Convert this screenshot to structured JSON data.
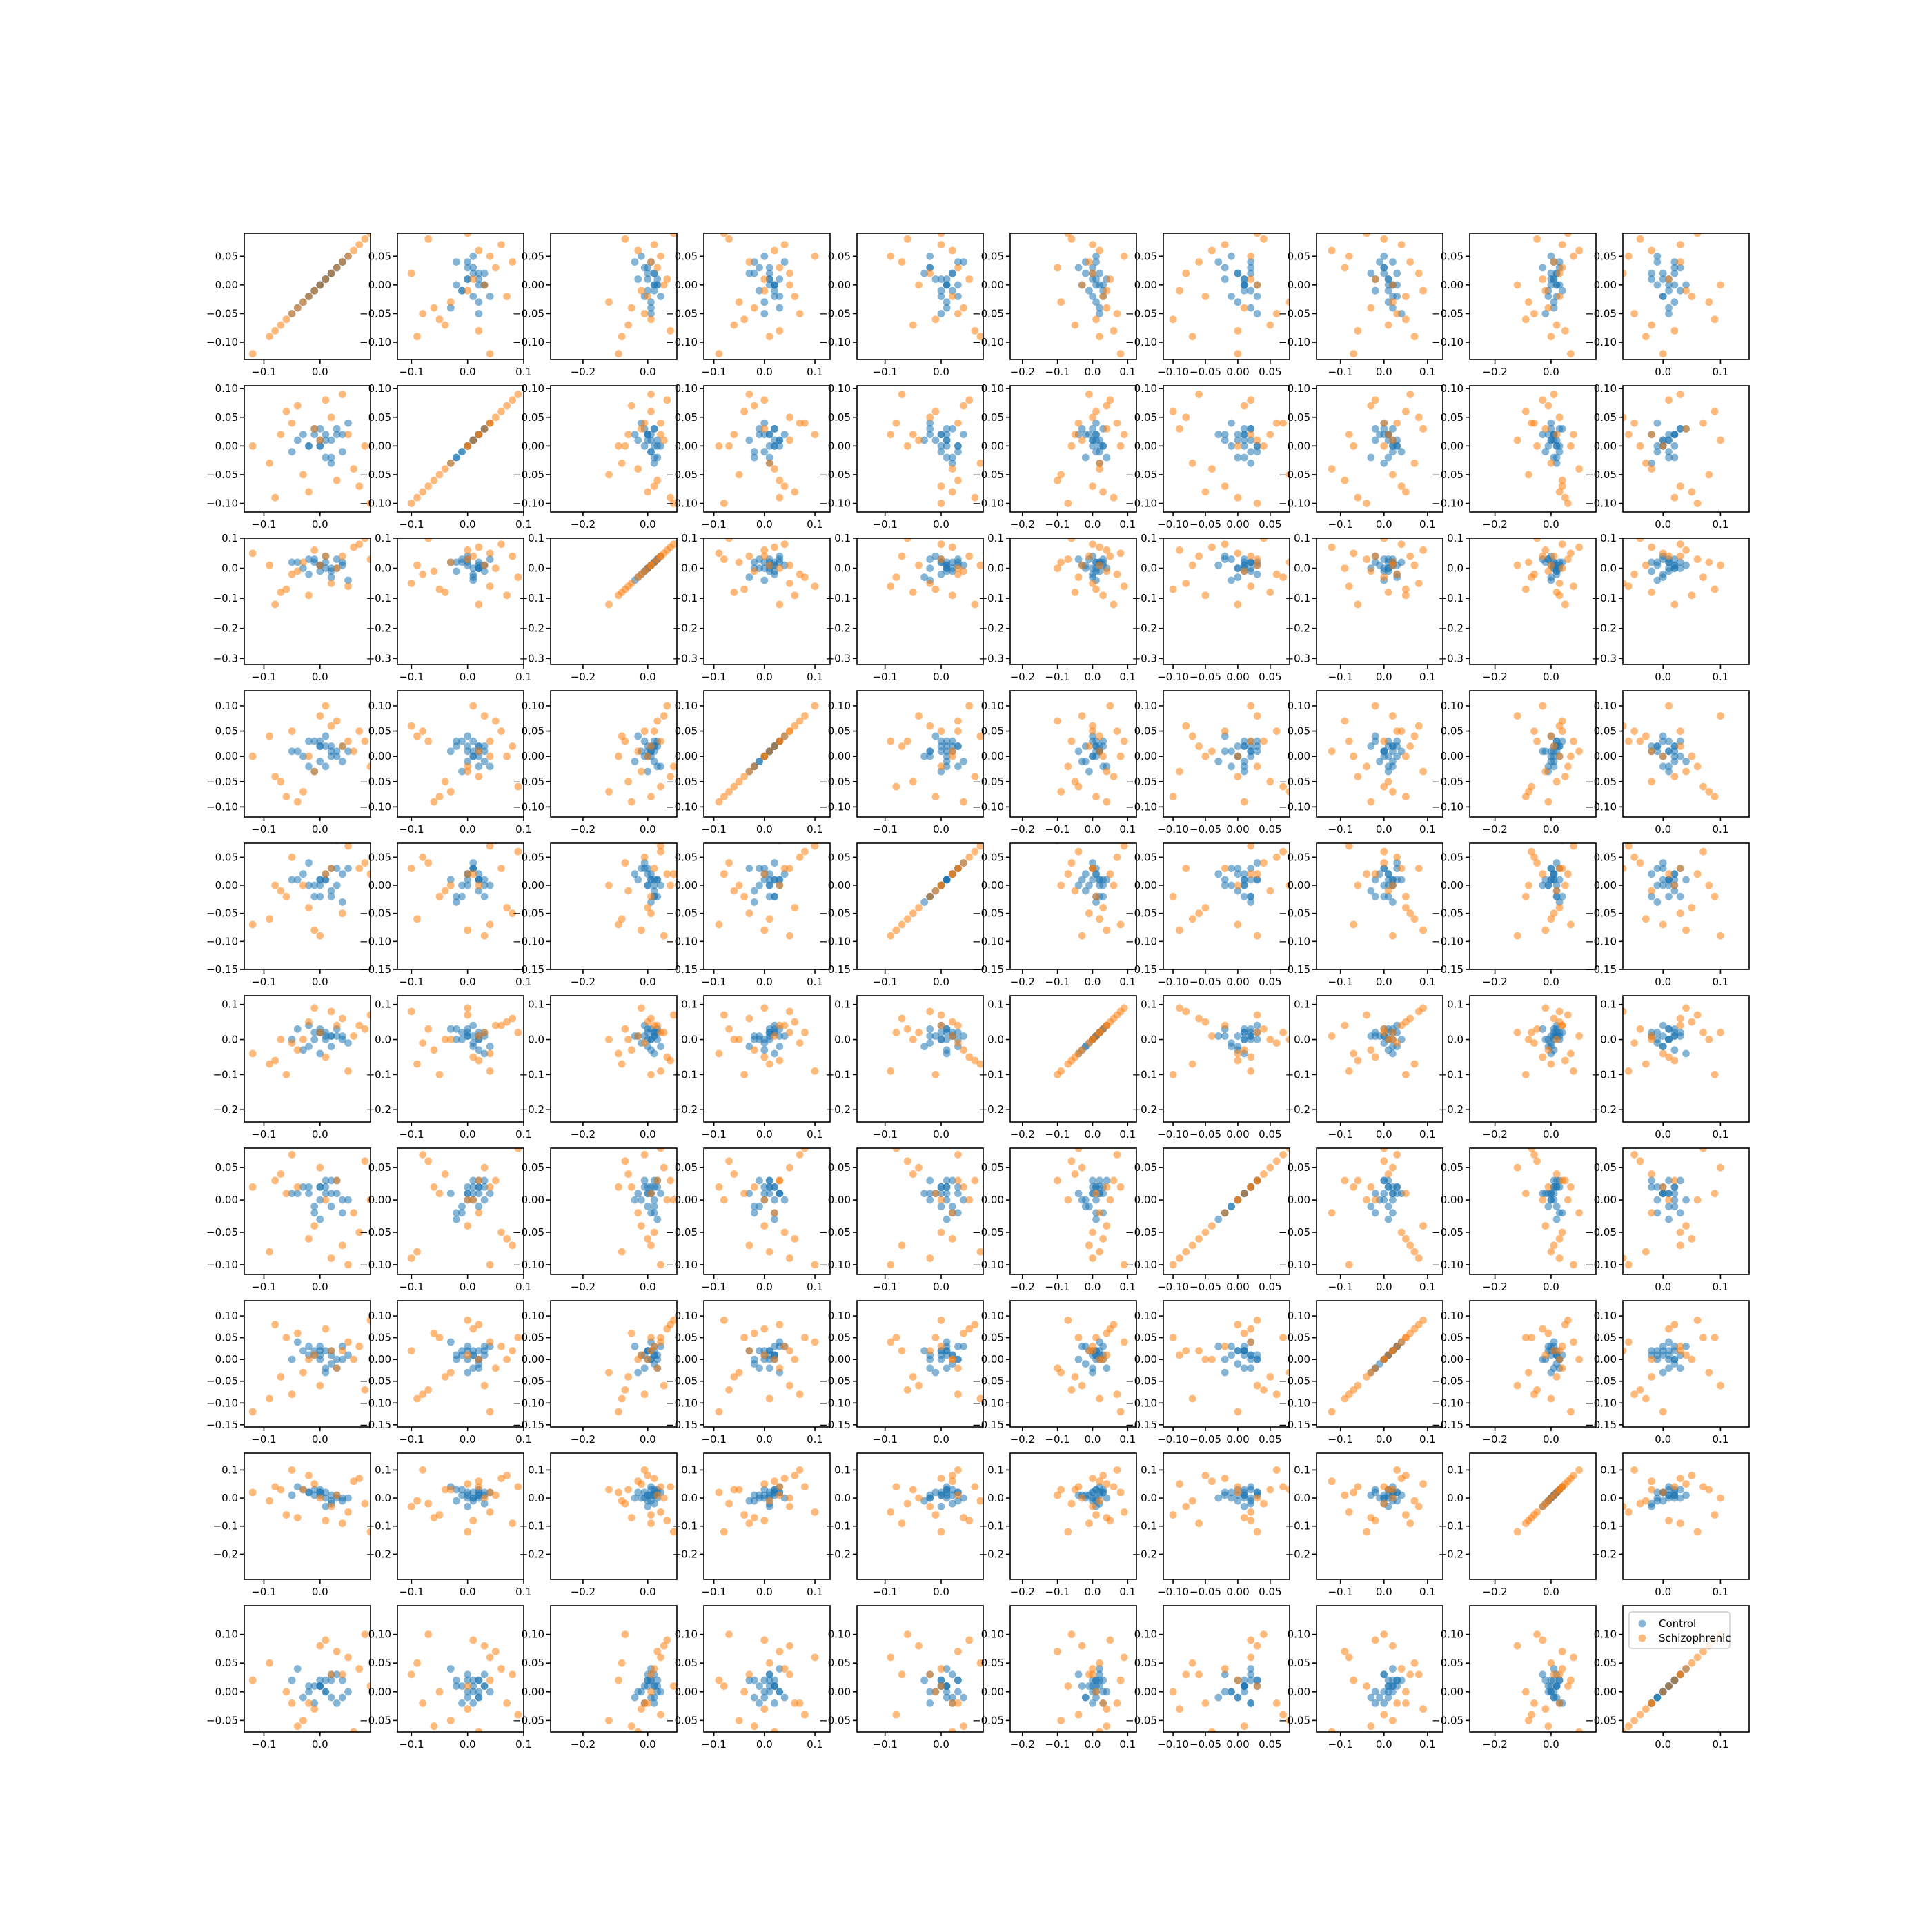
{
  "chart_data": {
    "type": "scatter",
    "layout": "pair-plot grid, 10 x 10 panels",
    "series": [
      {
        "name": "Control",
        "color": "#1f77b4",
        "opacity": 0.55
      },
      {
        "name": "Schizophrenic",
        "color": "#ff7f0e",
        "opacity": 0.55
      }
    ],
    "legend": {
      "location": "upper-left",
      "panel": [
        9,
        9
      ],
      "labels": [
        "Control",
        "Schizophrenic"
      ]
    },
    "variables": [
      {
        "ylim": [
          -0.13,
          0.09
        ],
        "yticks": [
          0.05,
          0.0,
          -0.05,
          -0.1
        ],
        "ytick_labels": [
          "0.05",
          "0.00",
          "−0.05",
          "−0.10"
        ]
      },
      {
        "ylim": [
          -0.115,
          0.105
        ],
        "yticks": [
          0.1,
          0.05,
          0.0,
          -0.05,
          -0.1
        ],
        "ytick_labels": [
          "0.10",
          "0.05",
          "0.00",
          "−0.05",
          "−0.10"
        ]
      },
      {
        "ylim": [
          -0.32,
          0.1
        ],
        "yticks": [
          0.1,
          0.0,
          -0.1,
          -0.2,
          -0.3
        ],
        "ytick_labels": [
          "0.1",
          "0.0",
          "−0.1",
          "−0.2",
          "−0.3"
        ]
      },
      {
        "ylim": [
          -0.12,
          0.13
        ],
        "yticks": [
          0.1,
          0.05,
          0.0,
          -0.05,
          -0.1
        ],
        "ytick_labels": [
          "0.10",
          "0.05",
          "0.00",
          "−0.05",
          "−0.10"
        ]
      },
      {
        "ylim": [
          -0.15,
          0.075
        ],
        "yticks": [
          0.05,
          0.0,
          -0.05,
          -0.1,
          -0.15
        ],
        "ytick_labels": [
          "0.05",
          "0.00",
          "−0.05",
          "−0.10",
          "−0.15"
        ]
      },
      {
        "ylim": [
          -0.235,
          0.125
        ],
        "yticks": [
          0.1,
          0.0,
          -0.1,
          -0.2
        ],
        "ytick_labels": [
          "0.1",
          "0.0",
          "−0.1",
          "−0.2"
        ]
      },
      {
        "ylim": [
          -0.115,
          0.08
        ],
        "yticks": [
          0.05,
          0.0,
          -0.05,
          -0.1
        ],
        "ytick_labels": [
          "0.05",
          "0.00",
          "−0.05",
          "−0.10"
        ]
      },
      {
        "ylim": [
          -0.155,
          0.135
        ],
        "yticks": [
          0.1,
          0.05,
          0.0,
          -0.05,
          -0.1,
          -0.15
        ],
        "ytick_labels": [
          "0.10",
          "0.05",
          "0.00",
          "−0.05",
          "−0.10",
          "−0.15"
        ]
      },
      {
        "ylim": [
          -0.29,
          0.16
        ],
        "yticks": [
          0.1,
          0.0,
          -0.1,
          -0.2
        ],
        "ytick_labels": [
          "0.1",
          "0.0",
          "−0.1",
          "−0.2"
        ]
      },
      {
        "ylim": [
          -0.07,
          0.15
        ],
        "yticks": [
          0.1,
          0.05,
          0.0,
          -0.05
        ],
        "ytick_labels": [
          "0.10",
          "0.05",
          "0.00",
          "−0.05"
        ]
      }
    ],
    "xaxes": [
      {
        "xlim": [
          -0.135,
          0.09
        ],
        "xticks": [
          -0.1,
          0.0
        ],
        "xtick_labels": [
          "−0.1",
          "0.0"
        ]
      },
      {
        "xlim": [
          -0.125,
          0.1
        ],
        "xticks": [
          -0.1,
          0.0,
          0.1
        ],
        "xtick_labels": [
          "−0.1",
          "0.0",
          "0.1"
        ]
      },
      {
        "xlim": [
          -0.3,
          0.09
        ],
        "xticks": [
          -0.2,
          0.0
        ],
        "xtick_labels": [
          "−0.2",
          "0.0"
        ]
      },
      {
        "xlim": [
          -0.12,
          0.13
        ],
        "xticks": [
          -0.1,
          0.0,
          0.1
        ],
        "xtick_labels": [
          "−0.1",
          "0.0",
          "0.1"
        ]
      },
      {
        "xlim": [
          -0.15,
          0.075
        ],
        "xticks": [
          -0.1,
          0.0
        ],
        "xtick_labels": [
          "−0.1",
          "0.0"
        ]
      },
      {
        "xlim": [
          -0.235,
          0.125
        ],
        "xticks": [
          -0.2,
          -0.1,
          0.0,
          0.1
        ],
        "xtick_labels": [
          "−0.2",
          "−0.1",
          "0.0",
          "0.1"
        ]
      },
      {
        "xlim": [
          -0.115,
          0.08
        ],
        "xticks": [
          -0.1,
          -0.05,
          0.0,
          0.05
        ],
        "xtick_labels": [
          "−0.10",
          "−0.05",
          "0.00",
          "0.05"
        ]
      },
      {
        "xlim": [
          -0.155,
          0.135
        ],
        "xticks": [
          -0.1,
          0.0,
          0.1
        ],
        "xtick_labels": [
          "−0.1",
          "0.0",
          "0.1"
        ]
      },
      {
        "xlim": [
          -0.29,
          0.16
        ],
        "xticks": [
          -0.2,
          0.0
        ],
        "xtick_labels": [
          "−0.2",
          "0.0"
        ]
      },
      {
        "xlim": [
          -0.07,
          0.15
        ],
        "xticks": [
          0.0,
          0.1
        ],
        "xtick_labels": [
          "0.0",
          "0.1"
        ]
      }
    ],
    "points": {
      "Control": [
        [
          0.0,
          0.01,
          0.02,
          0.01,
          -0.02,
          0.0,
          0.01,
          0.02,
          0.01,
          0.0
        ],
        [
          0.02,
          -0.01,
          0.03,
          0.01,
          0.0,
          -0.03,
          0.02,
          0.01,
          0.0,
          -0.02
        ],
        [
          -0.01,
          0.02,
          0.0,
          0.02,
          0.01,
          0.01,
          0.0,
          -0.02,
          0.02,
          0.01
        ],
        [
          0.01,
          0.0,
          -0.01,
          0.02,
          0.03,
          0.01,
          -0.02,
          0.0,
          -0.01,
          0.02
        ],
        [
          0.03,
          0.01,
          0.02,
          -0.02,
          0.01,
          0.0,
          0.02,
          0.01,
          0.03,
          -0.01
        ],
        [
          -0.02,
          0.03,
          0.01,
          0.0,
          -0.01,
          0.02,
          0.01,
          0.03,
          0.0,
          0.01
        ],
        [
          0.0,
          -0.02,
          0.01,
          0.03,
          0.02,
          -0.01,
          0.03,
          0.0,
          0.01,
          0.02
        ],
        [
          0.04,
          0.02,
          -0.03,
          0.01,
          0.0,
          0.03,
          -0.01,
          0.02,
          0.02,
          -0.02
        ],
        [
          -0.03,
          0.0,
          0.02,
          -0.01,
          0.03,
          0.01,
          0.02,
          -0.03,
          0.01,
          0.0
        ],
        [
          0.01,
          0.03,
          0.0,
          0.02,
          -0.02,
          0.02,
          0.0,
          0.01,
          -0.01,
          0.03
        ],
        [
          0.02,
          -0.01,
          0.03,
          0.0,
          0.01,
          -0.02,
          0.01,
          0.02,
          0.03,
          0.01
        ],
        [
          -0.01,
          0.02,
          -0.02,
          0.03,
          0.02,
          0.01,
          -0.01,
          0.0,
          0.02,
          0.01
        ],
        [
          0.0,
          0.01,
          0.01,
          -0.02,
          0.0,
          0.03,
          0.02,
          0.01,
          -0.02,
          0.02
        ],
        [
          0.05,
          -0.03,
          0.02,
          0.01,
          0.03,
          0.0,
          0.01,
          0.04,
          0.01,
          -0.01
        ],
        [
          -0.04,
          0.02,
          0.0,
          0.03,
          -0.02,
          0.01,
          0.03,
          -0.01,
          0.02,
          0.0
        ],
        [
          0.02,
          0.0,
          0.04,
          -0.01,
          0.01,
          0.02,
          -0.03,
          0.02,
          0.0,
          0.03
        ],
        [
          0.01,
          0.04,
          -0.01,
          0.02,
          0.0,
          -0.02,
          0.01,
          0.03,
          0.04,
          0.01
        ],
        [
          -0.02,
          0.01,
          0.03,
          0.0,
          0.04,
          0.02,
          0.0,
          -0.02,
          0.01,
          0.02
        ],
        [
          0.03,
          -0.02,
          0.01,
          0.04,
          0.01,
          0.0,
          0.02,
          0.01,
          -0.03,
          0.0
        ],
        [
          0.0,
          0.02,
          -0.04,
          0.01,
          -0.03,
          0.03,
          0.01,
          0.0,
          0.02,
          0.04
        ],
        [
          -0.05,
          0.0,
          0.02,
          -0.03,
          0.02,
          0.04,
          -0.02,
          0.03,
          0.0,
          -0.01
        ],
        [
          0.04,
          0.03,
          0.0,
          0.02,
          0.01,
          -0.04,
          0.03,
          0.02,
          0.03,
          0.02
        ]
      ],
      "Schizophrenic": [
        [
          0.02,
          -0.03,
          0.04,
          0.0,
          0.03,
          0.01,
          -0.04,
          0.02,
          -0.01,
          0.03
        ],
        [
          -0.03,
          0.04,
          -0.02,
          0.03,
          -0.01,
          0.02,
          0.03,
          -0.03,
          0.04,
          -0.02
        ],
        [
          0.05,
          0.0,
          0.03,
          -0.04,
          0.02,
          -0.03,
          0.01,
          0.04,
          0.02,
          0.01
        ],
        [
          -0.01,
          0.05,
          0.01,
          0.02,
          -0.04,
          0.04,
          -0.02,
          0.01,
          -0.03,
          0.05
        ],
        [
          0.03,
          -0.05,
          -0.03,
          0.05,
          0.04,
          0.0,
          0.05,
          -0.02,
          0.03,
          -0.04
        ],
        [
          -0.06,
          0.02,
          0.05,
          -0.02,
          0.0,
          -0.05,
          0.02,
          0.05,
          -0.05,
          0.02
        ],
        [
          0.06,
          0.03,
          -0.05,
          0.04,
          -0.05,
          0.05,
          -0.05,
          0.0,
          0.05,
          0.03
        ],
        [
          0.0,
          -0.06,
          0.02,
          -0.06,
          0.05,
          0.03,
          0.04,
          -0.06,
          0.01,
          -0.05
        ],
        [
          -0.04,
          0.06,
          -0.06,
          0.0,
          0.02,
          -0.06,
          0.0,
          0.06,
          -0.06,
          0.06
        ],
        [
          0.07,
          -0.04,
          0.06,
          0.06,
          -0.06,
          0.06,
          -0.06,
          0.03,
          0.06,
          -0.03
        ],
        [
          -0.07,
          0.01,
          0.0,
          -0.07,
          0.06,
          -0.01,
          0.06,
          -0.04,
          0.0,
          0.07
        ],
        [
          0.01,
          0.07,
          -0.07,
          0.03,
          -0.07,
          0.07,
          0.03,
          0.07,
          -0.07,
          0.0
        ],
        [
          -0.02,
          -0.07,
          0.07,
          -0.03,
          0.03,
          -0.07,
          -0.07,
          0.0,
          0.07,
          -0.07
        ],
        [
          0.08,
          0.02,
          0.01,
          0.07,
          0.0,
          0.02,
          0.07,
          -0.07,
          0.03,
          0.08
        ],
        [
          -0.08,
          0.08,
          -0.01,
          -0.08,
          0.07,
          -0.04,
          0.0,
          0.08,
          -0.08,
          -0.06
        ],
        [
          0.04,
          -0.08,
          0.08,
          0.01,
          -0.08,
          0.08,
          -0.08,
          0.02,
          0.08,
          0.04
        ],
        [
          -0.05,
          0.0,
          -0.08,
          0.08,
          0.08,
          0.0,
          0.08,
          -0.08,
          -0.02,
          -0.08
        ],
        [
          0.09,
          -0.09,
          0.04,
          -0.09,
          -0.02,
          -0.09,
          0.02,
          0.09,
          0.04,
          0.09
        ],
        [
          -0.09,
          0.09,
          -0.09,
          0.05,
          0.09,
          0.09,
          -0.09,
          -0.09,
          -0.09,
          -0.02
        ],
        [
          0.1,
          0.04,
          0.1,
          -0.05,
          -0.09,
          0.04,
          0.1,
          0.05,
          0.1,
          0.1
        ],
        [
          -0.12,
          -0.1,
          -0.12,
          0.1,
          0.1,
          -0.1,
          -0.1,
          -0.12,
          -0.12,
          -0.1
        ]
      ]
    }
  }
}
